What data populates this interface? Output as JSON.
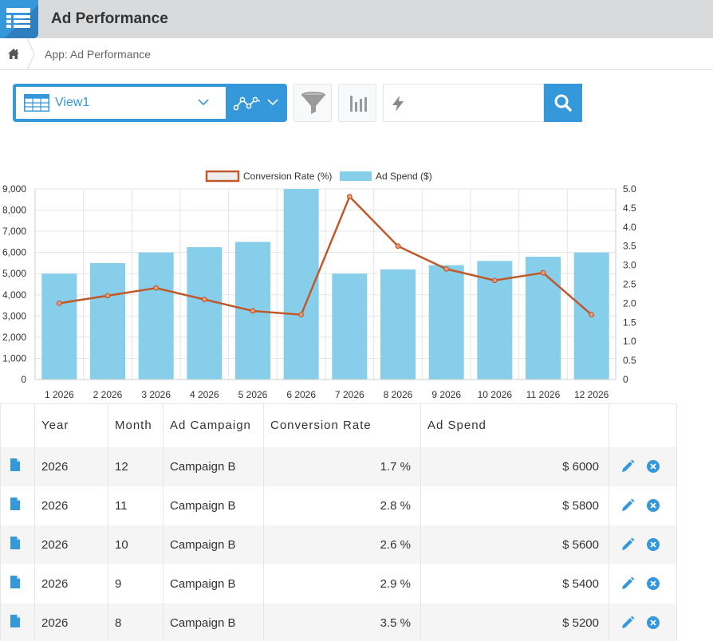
{
  "app": {
    "title": "Ad Performance"
  },
  "breadcrumb": {
    "path": "App: Ad Performance"
  },
  "toolbar": {
    "view_name": "View1",
    "search": {
      "value": "",
      "placeholder": ""
    }
  },
  "colors": {
    "accent": "#3498db",
    "line": "#c0592a",
    "bar": "#87ceeb"
  },
  "chart_data": {
    "type": "bar",
    "categories": [
      "1 2026",
      "2 2026",
      "3 2026",
      "4 2026",
      "5 2026",
      "6 2026",
      "7 2026",
      "8 2026",
      "9 2026",
      "10 2026",
      "11 2026",
      "12 2026"
    ],
    "series": [
      {
        "name": "Ad Spend ($)",
        "type": "bar",
        "axis": "left",
        "values": [
          5000,
          5500,
          6000,
          6250,
          6500,
          9000,
          5000,
          5200,
          5400,
          5600,
          5800,
          6000
        ]
      },
      {
        "name": "Conversion Rate (%)",
        "type": "line",
        "axis": "right",
        "values": [
          2.0,
          2.2,
          2.4,
          2.1,
          1.8,
          1.7,
          4.8,
          3.5,
          2.9,
          2.6,
          2.8,
          1.7
        ]
      }
    ],
    "y_left": {
      "ylim": [
        0,
        9000
      ],
      "ticks": [
        "0",
        "1,000",
        "2,000",
        "3,000",
        "4,000",
        "5,000",
        "6,000",
        "7,000",
        "8,000",
        "9,000"
      ]
    },
    "y_right": {
      "ylim": [
        0,
        5
      ],
      "ticks": [
        "0",
        "0.5",
        "1.0",
        "1.5",
        "2.0",
        "2.5",
        "3.0",
        "3.5",
        "4.0",
        "4.5",
        "5.0"
      ]
    },
    "legend_position": "top-center",
    "grid": true
  },
  "table": {
    "headers": [
      "Year",
      "Month",
      "Ad Campaign",
      "Conversion Rate",
      "Ad Spend"
    ],
    "rows": [
      {
        "year": "2026",
        "month": "12",
        "campaign": "Campaign B",
        "rate": "1.7 %",
        "spend": "$ 6000"
      },
      {
        "year": "2026",
        "month": "11",
        "campaign": "Campaign B",
        "rate": "2.8 %",
        "spend": "$ 5800"
      },
      {
        "year": "2026",
        "month": "10",
        "campaign": "Campaign B",
        "rate": "2.6 %",
        "spend": "$ 5600"
      },
      {
        "year": "2026",
        "month": "9",
        "campaign": "Campaign B",
        "rate": "2.9 %",
        "spend": "$ 5400"
      },
      {
        "year": "2026",
        "month": "8",
        "campaign": "Campaign B",
        "rate": "3.5 %",
        "spend": "$ 5200"
      }
    ]
  }
}
